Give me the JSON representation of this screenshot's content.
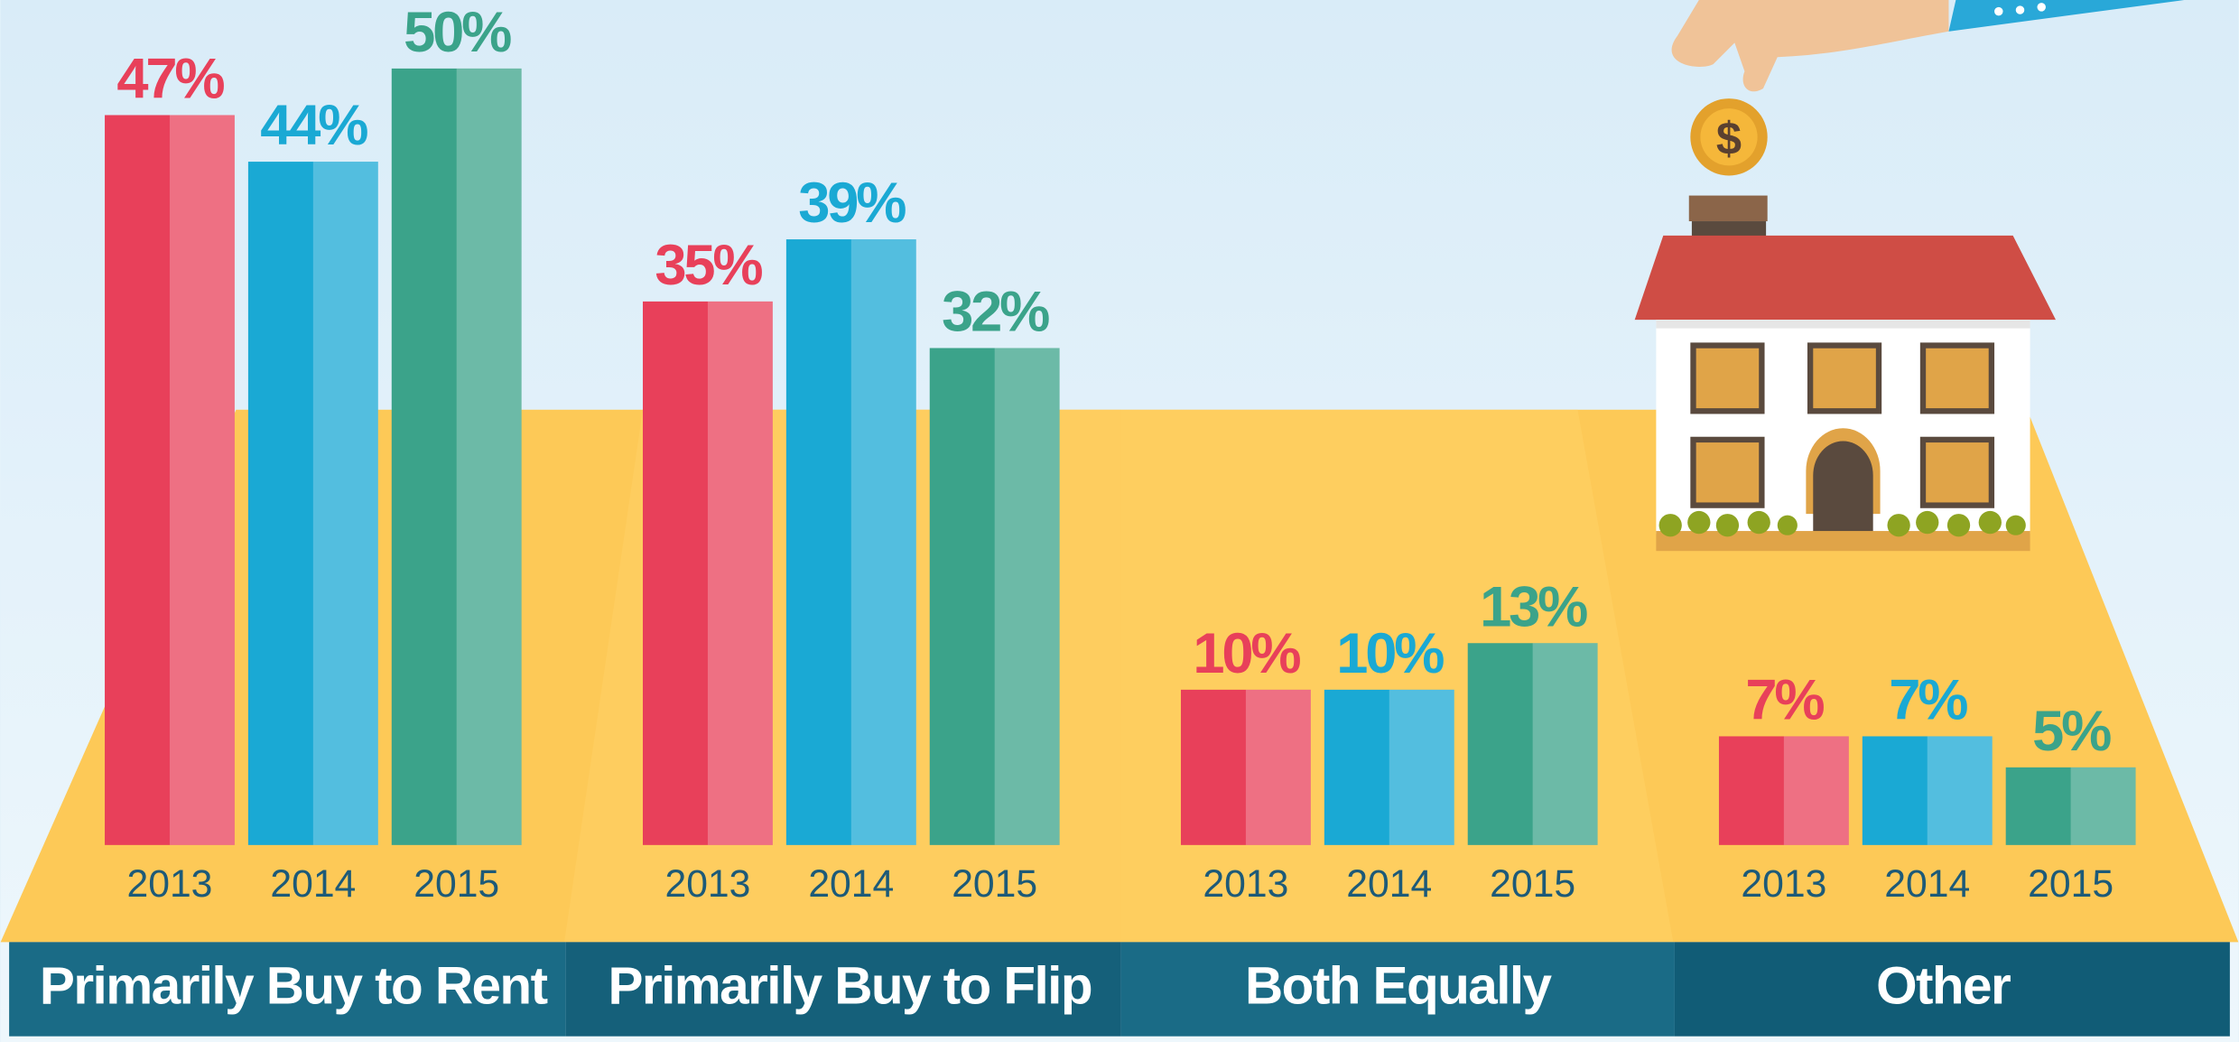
{
  "chart_data": {
    "type": "bar",
    "categories": [
      "Primarily Buy to Rent",
      "Primarily Buy to Flip",
      "Both Equally",
      "Other"
    ],
    "series": [
      {
        "name": "2013",
        "color": "#e8405a",
        "values": [
          47,
          35,
          10,
          7
        ],
        "value_labels": [
          "47%",
          "35%",
          "10%",
          "7%"
        ]
      },
      {
        "name": "2014",
        "color": "#1aa9d4",
        "values": [
          44,
          39,
          10,
          7
        ],
        "value_labels": [
          "44%",
          "39%",
          "10%",
          "7%"
        ]
      },
      {
        "name": "2015",
        "color": "#3ba38a",
        "values": [
          50,
          32,
          13,
          5
        ],
        "value_labels": [
          "50%",
          "32%",
          "13%",
          "5%"
        ]
      }
    ]
  }
}
